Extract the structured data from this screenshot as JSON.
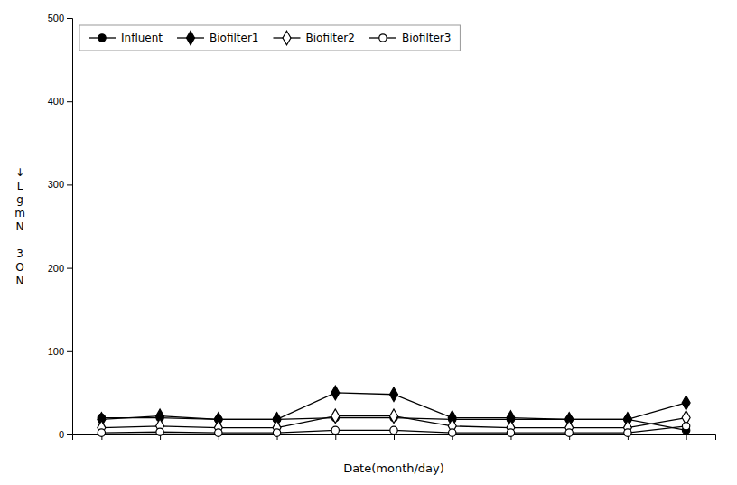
{
  "chart_data": {
    "type": "line",
    "xlabel": "Date(month/day)",
    "ylabel": "↓\nL\ng\nm\nN\n⁻\n3\nO\nN",
    "categories": [
      null,
      null,
      null,
      null,
      null,
      null,
      null,
      null,
      null,
      null,
      null
    ],
    "series": [
      {
        "name": "Influent",
        "color": "black",
        "marker": "circle",
        "values": [
          20,
          20,
          18,
          18,
          20,
          20,
          18,
          18,
          18,
          18,
          5
        ]
      },
      {
        "name": "Biofilter1",
        "color": "black",
        "marker": "diamond",
        "values": [
          18,
          22,
          18,
          18,
          50,
          48,
          20,
          20,
          18,
          18,
          38
        ]
      },
      {
        "name": "Biofilter2",
        "color": "black",
        "marker": "diamond-open",
        "values": [
          8,
          10,
          8,
          8,
          22,
          22,
          10,
          8,
          8,
          8,
          20
        ]
      },
      {
        "name": "Biofilter3",
        "color": "black",
        "marker": "circle-open",
        "values": [
          2,
          3,
          2,
          2,
          5,
          5,
          2,
          2,
          2,
          2,
          10
        ]
      }
    ],
    "ylim": [
      0,
      500
    ],
    "yticks": [
      0,
      100,
      200,
      300,
      400,
      500
    ],
    "grid": false,
    "legend": "upper left",
    "tick_labels": "y"
  }
}
